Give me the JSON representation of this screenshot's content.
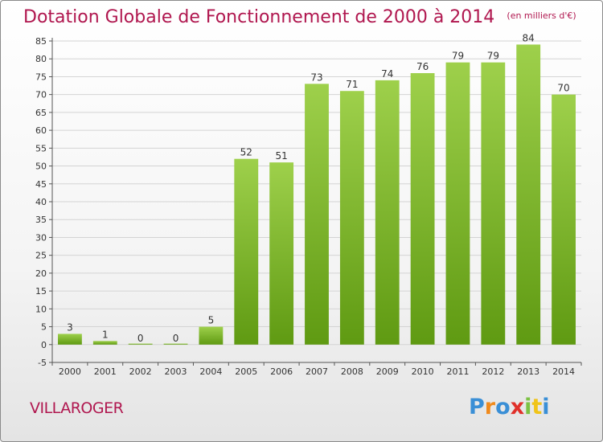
{
  "title": "Dotation Globale de Fonctionnement de 2000 à 2014",
  "unit_note": "(en milliers d'€)",
  "commune": "VILLAROGER",
  "brand": "Proxiti",
  "colors": {
    "title": "#b0174f",
    "bar_top": "#9ed04b",
    "bar_bottom": "#5f9a12",
    "grid": "#d4d4d4",
    "axis": "#555555"
  },
  "chart_data": {
    "type": "bar",
    "categories": [
      "2000",
      "2001",
      "2002",
      "2003",
      "2004",
      "2005",
      "2006",
      "2007",
      "2008",
      "2009",
      "2010",
      "2011",
      "2012",
      "2013",
      "2014"
    ],
    "values": [
      3,
      1,
      0,
      0,
      5,
      52,
      51,
      73,
      71,
      74,
      76,
      79,
      79,
      84,
      70
    ],
    "title": "Dotation Globale de Fonctionnement de 2000 à 2014",
    "unit": "(en milliers d'€)",
    "ylim": [
      -5,
      85
    ],
    "yticks": [
      -5,
      0,
      5,
      10,
      15,
      20,
      25,
      30,
      35,
      40,
      45,
      50,
      55,
      60,
      65,
      70,
      75,
      80,
      85
    ],
    "grid": true,
    "data_labels": true
  }
}
